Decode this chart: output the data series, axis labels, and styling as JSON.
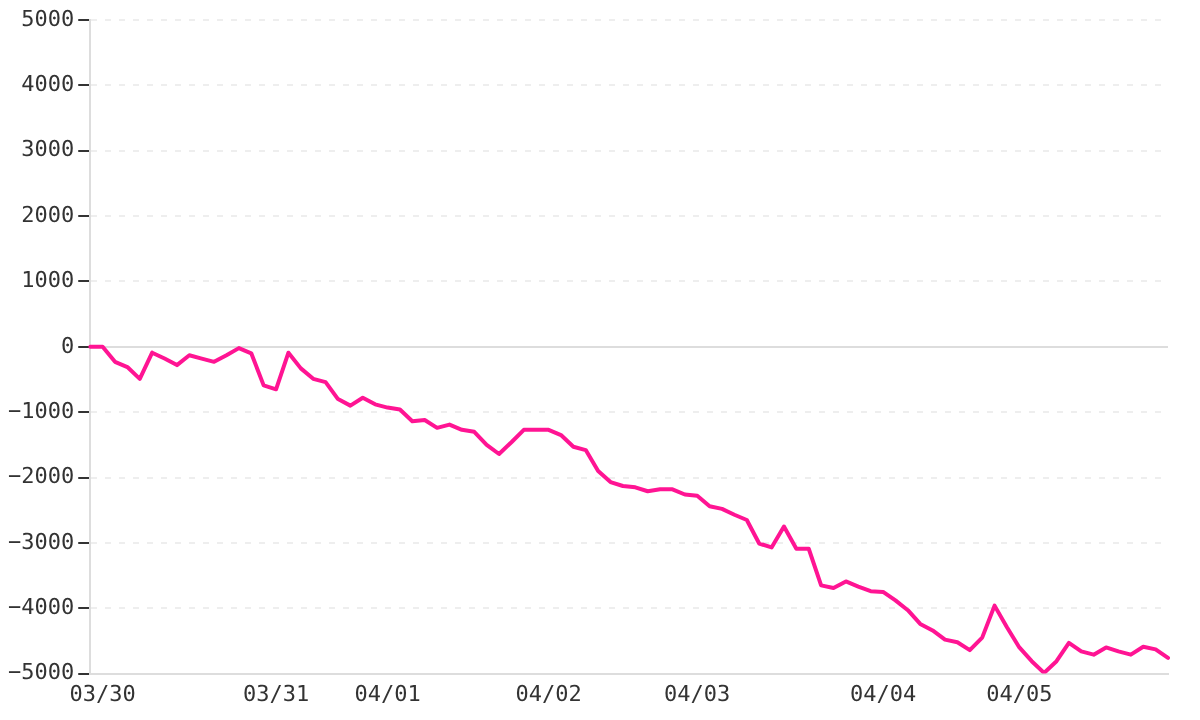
{
  "chart_data": {
    "type": "line",
    "categories": [
      null,
      "03/30",
      null,
      null,
      null,
      null,
      null,
      null,
      null,
      null,
      null,
      null,
      null,
      null,
      null,
      "03/31",
      null,
      null,
      null,
      null,
      null,
      null,
      null,
      null,
      "04/01",
      null,
      null,
      null,
      null,
      null,
      null,
      null,
      null,
      null,
      null,
      null,
      null,
      "04/02",
      null,
      null,
      null,
      null,
      null,
      null,
      null,
      null,
      null,
      null,
      null,
      "04/03",
      null,
      null,
      null,
      null,
      null,
      null,
      null,
      null,
      null,
      null,
      null,
      null,
      null,
      null,
      "04/04",
      null,
      null,
      null,
      null,
      null,
      null,
      null,
      null,
      null,
      null,
      "04/05",
      null,
      null,
      null,
      null,
      null,
      null,
      null,
      null,
      null,
      null,
      null,
      null
    ],
    "series": [
      {
        "color": "#ff1493",
        "values": [
          0,
          0,
          -230,
          -310,
          -490,
          -90,
          -180,
          -280,
          -130,
          -180,
          -230,
          -130,
          -20,
          -100,
          -590,
          -650,
          -90,
          -330,
          -490,
          -540,
          -800,
          -900,
          -780,
          -880,
          -930,
          -960,
          -1140,
          -1120,
          -1240,
          -1190,
          -1270,
          -1300,
          -1500,
          -1640,
          -1460,
          -1270,
          -1270,
          -1270,
          -1350,
          -1530,
          -1580,
          -1900,
          -2070,
          -2130,
          -2150,
          -2210,
          -2180,
          -2180,
          -2260,
          -2280,
          -2440,
          -2480,
          -2570,
          -2650,
          -3010,
          -3070,
          -2750,
          -3090,
          -3090,
          -3650,
          -3690,
          -3590,
          -3670,
          -3740,
          -3750,
          -3880,
          -4030,
          -4240,
          -4340,
          -4480,
          -4520,
          -4640,
          -4450,
          -3960,
          -4290,
          -4600,
          -4810,
          -4990,
          -4810,
          -4530,
          -4660,
          -4710,
          -4600,
          -4660,
          -4710,
          -4590,
          -4630,
          -4760
        ]
      }
    ],
    "ylim": [
      -5000,
      5000
    ],
    "yticks": [
      -5000,
      -4000,
      -3000,
      -2000,
      -1000,
      0,
      1000,
      2000,
      3000,
      4000,
      5000
    ],
    "grid": "y",
    "legend": false,
    "marker": "none",
    "line_style": "solid"
  }
}
